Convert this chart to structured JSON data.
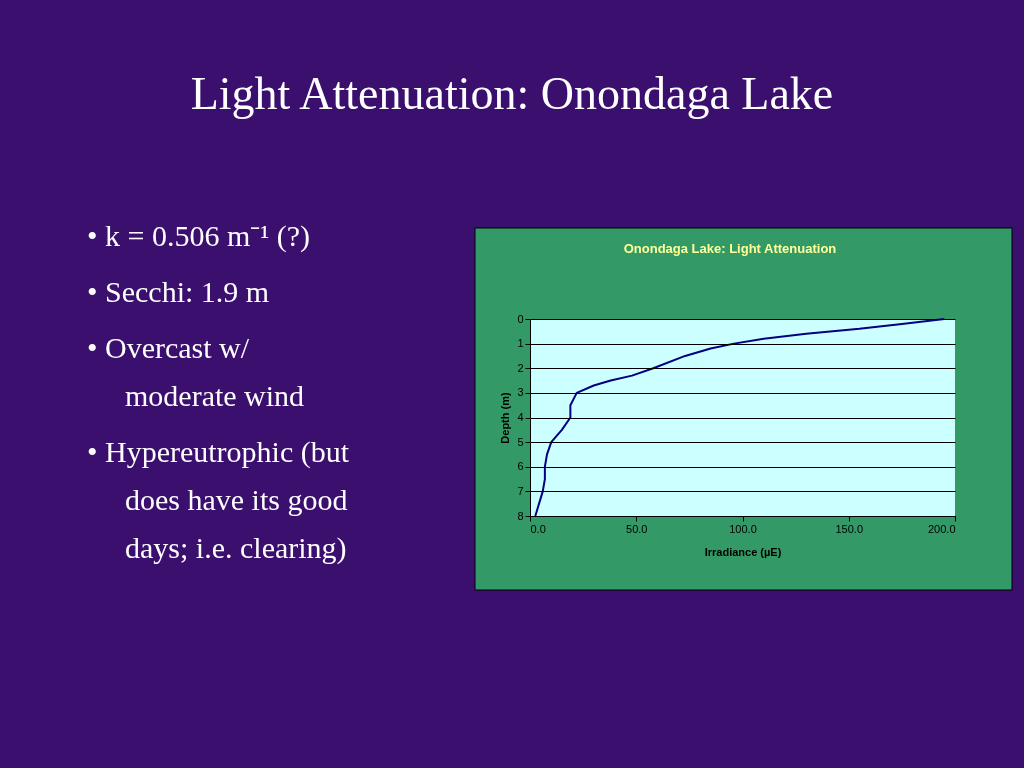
{
  "chart_data": {
    "type": "line",
    "title": "Light Attenuation: Onondaga Lake",
    "subtitle": "Onondaga Lake: Light Attenuation",
    "xlabel": "Irradiance (µE)",
    "ylabel": "Depth (m)",
    "annotations": [
      "• k = 0.506 m⁻¹ (?)",
      "• Secchi: 1.9 m",
      "• Overcast w/ moderate wind",
      "• Hypereutrophic (but does have its good days; i.e. clearing)"
    ],
    "series": [
      {
        "color": "#000080",
        "x": [
          195,
          175,
          155,
          130,
          110,
          96,
          85,
          73,
          58,
          48,
          38,
          30,
          22,
          19,
          19,
          15,
          10,
          8,
          7,
          7,
          6,
          2.5
        ],
        "values": [
          0,
          0.2,
          0.4,
          0.6,
          0.8,
          1,
          1.2,
          1.5,
          2,
          2.3,
          2.5,
          2.7,
          3,
          3.5,
          4,
          4.5,
          5,
          5.5,
          6,
          6.5,
          7,
          8
        ]
      }
    ],
    "xlim": [
      0,
      200
    ],
    "xticks": [
      {
        "value": 0,
        "label": "0.0"
      },
      {
        "value": 50,
        "label": "50.0"
      },
      {
        "value": 100,
        "label": "100.0"
      },
      {
        "value": 150,
        "label": "150.0"
      },
      {
        "value": 200,
        "label": "200.0"
      }
    ],
    "ylim": [
      8,
      0
    ],
    "yticks": [
      0,
      1,
      2,
      3,
      4,
      5,
      6,
      7,
      8
    ],
    "grid": "y",
    "marker": "none",
    "line_style": "solid"
  }
}
